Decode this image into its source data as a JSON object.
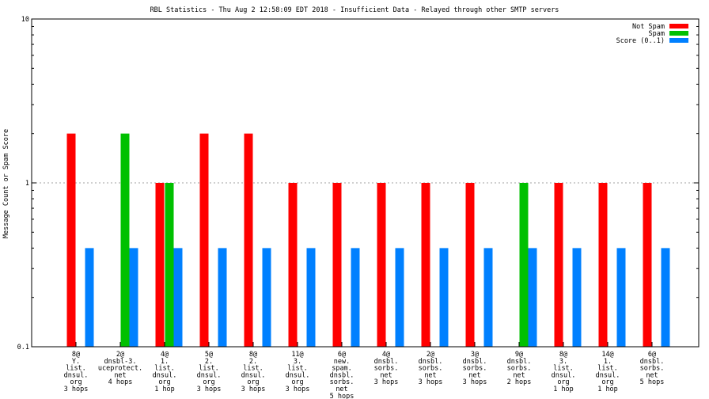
{
  "chart_data": {
    "type": "bar",
    "title": "RBL Statistics - Thu Aug  2 12:58:09 EDT 2018 - Insufficient Data - Relayed through other SMTP servers",
    "ylabel": "Message Count or Spam Score",
    "xlabel": "",
    "yscale": "log",
    "ylim": [
      0.1,
      10
    ],
    "yticks": [
      {
        "value": 0.1,
        "label": "0.1"
      },
      {
        "value": 1,
        "label": "1"
      },
      {
        "value": 10,
        "label": "10"
      }
    ],
    "grid": true,
    "legend_position": "top-right",
    "categories": [
      [
        "8@",
        "Y.",
        "list.",
        "dnsul.",
        "org",
        "3 hops"
      ],
      [
        "2@",
        "dnsbl-3.",
        "uceprotect.",
        "net",
        "4 hops"
      ],
      [
        "4@",
        "1.",
        "list.",
        "dnsul.",
        "org",
        "1 hop"
      ],
      [
        "5@",
        "2.",
        "list.",
        "dnsul.",
        "org",
        "3 hops"
      ],
      [
        "8@",
        "2.",
        "list.",
        "dnsul.",
        "org",
        "3 hops"
      ],
      [
        "11@",
        "3.",
        "list.",
        "dnsul.",
        "org",
        "3 hops"
      ],
      [
        "6@",
        "new.",
        "spam.",
        "dnsbl.",
        "sorbs.",
        "net",
        "5 hops"
      ],
      [
        "4@",
        "dnsbl.",
        "sorbs.",
        "net",
        "3 hops"
      ],
      [
        "2@",
        "dnsbl.",
        "sorbs.",
        "net",
        "3 hops"
      ],
      [
        "3@",
        "dnsbl.",
        "sorbs.",
        "net",
        "3 hops"
      ],
      [
        "9@",
        "dnsbl.",
        "sorbs.",
        "net",
        "2 hops"
      ],
      [
        "8@",
        "3.",
        "list.",
        "dnsul.",
        "org",
        "1 hop"
      ],
      [
        "14@",
        "1.",
        "list.",
        "dnsul.",
        "org",
        "1 hop"
      ],
      [
        "6@",
        "dnsbl.",
        "sorbs.",
        "net",
        "5 hops"
      ]
    ],
    "series": [
      {
        "name": "Not Spam",
        "color": "#ff0000",
        "values": [
          2,
          null,
          1,
          2,
          2,
          1,
          1,
          1,
          1,
          1,
          null,
          1,
          1,
          1
        ]
      },
      {
        "name": "Spam",
        "color": "#00c000",
        "values": [
          null,
          2,
          1,
          null,
          null,
          null,
          null,
          null,
          null,
          null,
          1,
          null,
          null,
          null
        ]
      },
      {
        "name": "Score (0..1)",
        "color": "#0080ff",
        "values": [
          0.4,
          0.4,
          0.4,
          0.4,
          0.4,
          0.4,
          0.4,
          0.4,
          0.4,
          0.4,
          0.4,
          0.4,
          0.4,
          0.4
        ]
      }
    ]
  }
}
